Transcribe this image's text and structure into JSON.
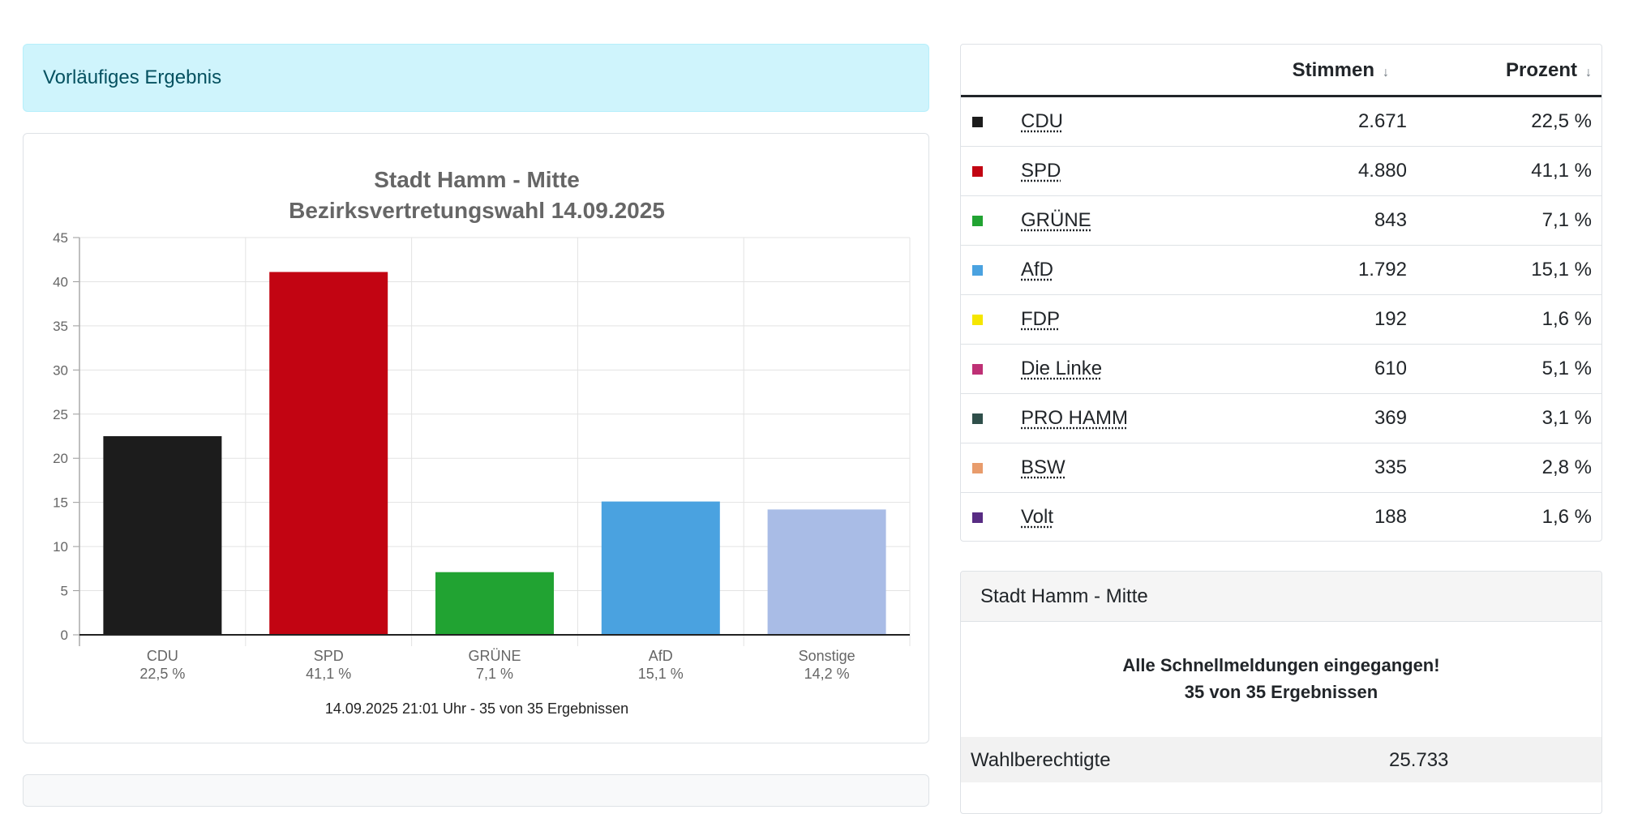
{
  "alert": {
    "text": "Vorläufiges Ergebnis"
  },
  "chart_data": {
    "type": "bar",
    "title": "Stadt Hamm - Mitte",
    "subtitle": "Bezirksvertretungswahl 14.09.2025",
    "categories": [
      "CDU",
      "SPD",
      "GRÜNE",
      "AfD",
      "Sonstige"
    ],
    "category_sublabels": [
      "22,5 %",
      "41,1 %",
      "7,1 %",
      "15,1 %",
      "14,2 %"
    ],
    "values": [
      22.5,
      41.1,
      7.1,
      15.1,
      14.2
    ],
    "colors": [
      "#1c1c1c",
      "#c20412",
      "#21a332",
      "#4aa2e0",
      "#a9bce6"
    ],
    "ylim": [
      0,
      45
    ],
    "yticks": [
      0,
      5,
      10,
      15,
      20,
      25,
      30,
      35,
      40,
      45
    ],
    "xlabel": "",
    "ylabel": "",
    "grid": true,
    "footer": "14.09.2025 21:01 Uhr - 35 von 35 Ergebnissen"
  },
  "table": {
    "header_votes": "Stimmen",
    "header_percent": "Prozent",
    "sort_icon": "arrow-down-icon",
    "rows": [
      {
        "party": "CDU",
        "votes": "2.671",
        "percent": "22,5 %",
        "color": "#1c1c1c"
      },
      {
        "party": "SPD",
        "votes": "4.880",
        "percent": "41,1 %",
        "color": "#c20412"
      },
      {
        "party": "GRÜNE",
        "votes": "843",
        "percent": "7,1 %",
        "color": "#21a332"
      },
      {
        "party": "AfD",
        "votes": "1.792",
        "percent": "15,1 %",
        "color": "#4aa2e0"
      },
      {
        "party": "FDP",
        "votes": "192",
        "percent": "1,6 %",
        "color": "#f5e600"
      },
      {
        "party": "Die Linke",
        "votes": "610",
        "percent": "5,1 %",
        "color": "#be3075"
      },
      {
        "party": "PRO HAMM",
        "votes": "369",
        "percent": "3,1 %",
        "color": "#2f4f4a"
      },
      {
        "party": "BSW",
        "votes": "335",
        "percent": "2,8 %",
        "color": "#e89c6c"
      },
      {
        "party": "Volt",
        "votes": "188",
        "percent": "1,6 %",
        "color": "#582c83"
      }
    ]
  },
  "info": {
    "title": "Stadt Hamm - Mitte",
    "message_line1": "Alle Schnellmeldungen eingegangen!",
    "message_line2": "35 von 35 Ergebnissen",
    "eligible_label": "Wahlberechtigte",
    "eligible_value": "25.733"
  }
}
